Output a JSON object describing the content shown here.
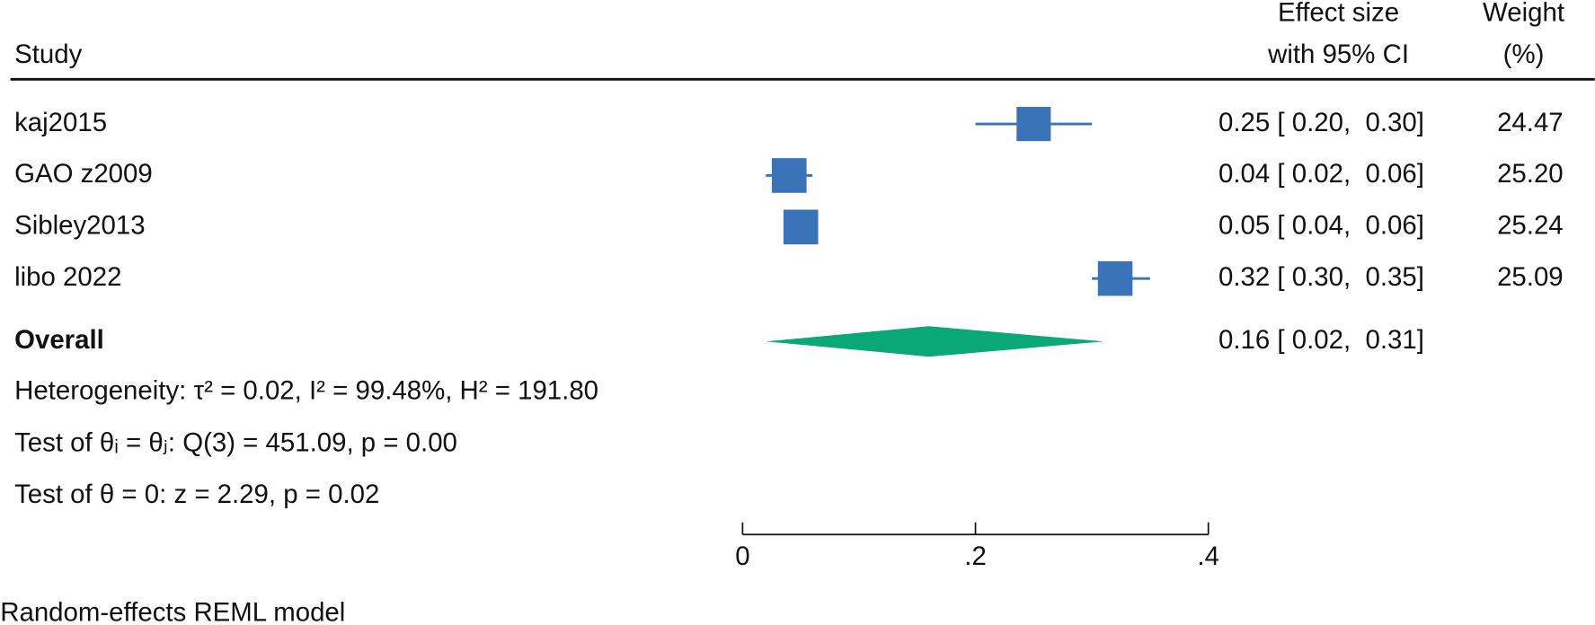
{
  "chart_data": {
    "type": "forest",
    "headers": {
      "study": "Study",
      "effect": [
        "Effect size",
        "with 95% CI"
      ],
      "weight": [
        "Weight",
        "(%)"
      ]
    },
    "studies": [
      {
        "name": "kaj2015",
        "effect": 0.25,
        "ci": [
          0.2,
          0.3
        ],
        "effect_label": "0.25 [ 0.20,  0.30]",
        "weight": 24.47,
        "weight_label": "24.47"
      },
      {
        "name": "GAO z2009",
        "effect": 0.04,
        "ci": [
          0.02,
          0.06
        ],
        "effect_label": "0.04 [ 0.02,  0.06]",
        "weight": 25.2,
        "weight_label": "25.20"
      },
      {
        "name": "Sibley2013",
        "effect": 0.05,
        "ci": [
          0.04,
          0.06
        ],
        "effect_label": "0.05 [ 0.04,  0.06]",
        "weight": 25.24,
        "weight_label": "25.24"
      },
      {
        "name": "libo 2022",
        "effect": 0.32,
        "ci": [
          0.3,
          0.35
        ],
        "effect_label": "0.32 [ 0.30,  0.35]",
        "weight": 25.09,
        "weight_label": "25.09"
      }
    ],
    "overall": {
      "name": "Overall",
      "effect": 0.16,
      "ci": [
        0.02,
        0.31
      ],
      "effect_label": "0.16 [ 0.02,  0.31]"
    },
    "notes": [
      "Heterogeneity: τ² = 0.02, I² = 99.48%, H² = 191.80",
      "Test of θᵢ = θⱼ: Q(3) = 451.09, p = 0.00",
      "Test of θ = 0: z = 2.29, p = 0.02"
    ],
    "xlim": [
      0,
      0.4
    ],
    "xticks": [
      0,
      {
        "value": 0.2,
        "label": ".2"
      },
      {
        "value": 0.4,
        "label": ".4"
      }
    ],
    "footnote": "Random-effects REML model",
    "marker_color": "#3b73b9",
    "overall_color": "#0aa876"
  }
}
